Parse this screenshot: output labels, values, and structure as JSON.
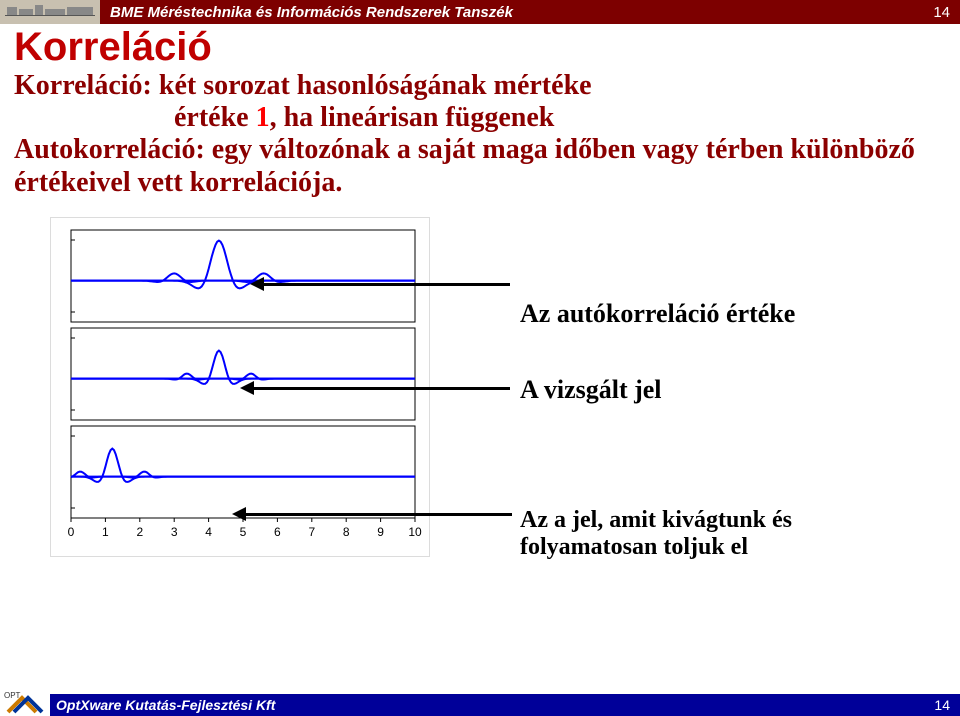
{
  "header": {
    "text": "BME Méréstechnika és Információs Rendszerek Tanszék",
    "page": "14"
  },
  "title": "Korreláció",
  "line1_prefix": "Korreláció:",
  "line1_rest": " két sorozat hasonlóságának mértéke",
  "line2_prefix": "értéke ",
  "line2_value": "1",
  "line2_rest": ", ha lineárisan függenek",
  "line3_prefix": "Autokorreláció:",
  "line3_rest": " egy változónak a saját maga időben vagy térben különböző értékeivel vett korrelációja.",
  "annotations": {
    "a1": "Az autókorreláció értéke",
    "a2": "A vizsgált jel",
    "a3_l1": "Az a jel, amit kivágtunk és",
    "a3_l2": "folyamatosan toljuk el"
  },
  "chart": {
    "line_color": "#0000ff",
    "axis_color": "#000000",
    "box_border": "#000000",
    "x_ticks": [
      "0",
      "1",
      "2",
      "3",
      "4",
      "5",
      "6",
      "7",
      "8",
      "9",
      "10"
    ]
  },
  "footer": {
    "text": "OptXware Kutatás-Fejlesztési Kft",
    "page": "14"
  }
}
